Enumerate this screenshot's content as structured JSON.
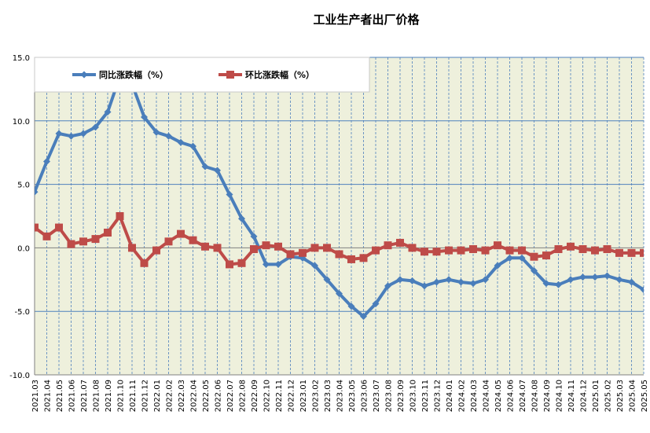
{
  "chart_data": {
    "type": "line",
    "title": "工业生产者出厂价格",
    "xlabel": "",
    "ylabel": "",
    "ylim": [
      -10,
      15
    ],
    "yticks": [
      "15.0",
      "10.0",
      "5.0",
      "0.0",
      "-5.0",
      "-10.0"
    ],
    "ytick_values": [
      15,
      10,
      5,
      0,
      -5,
      -10
    ],
    "grid": true,
    "legend_position": "top-left",
    "categories": [
      "2021.03",
      "2021.04",
      "2021.05",
      "2021.06",
      "2021.07",
      "2021.08",
      "2021.09",
      "2021.10",
      "2021.11",
      "2021.12",
      "2022.01",
      "2022.02",
      "2022.03",
      "2022.04",
      "2022.05",
      "2022.06",
      "2022.07",
      "2022.08",
      "2022.09",
      "2022.10",
      "2022.11",
      "2022.12",
      "2023.01",
      "2023.02",
      "2023.03",
      "2023.04",
      "2023.05",
      "2023.06",
      "2023.07",
      "2023.08",
      "2023.09",
      "2023.10",
      "2023.11",
      "2023.12",
      "2024.01",
      "2024.02",
      "2024.03",
      "2024.04",
      "2024.05",
      "2024.06",
      "2024.07",
      "2024.08",
      "2024.09",
      "2024.10",
      "2024.11",
      "2024.12",
      "2025.01",
      "2025.02",
      "2025.03",
      "2025.04",
      "2025.05"
    ],
    "series": [
      {
        "name": "同比涨跌幅（%）",
        "color": "#4a7ebb",
        "marker": "diamond",
        "values": [
          4.4,
          6.8,
          9.0,
          8.8,
          9.0,
          9.5,
          10.7,
          13.5,
          12.9,
          10.3,
          9.1,
          8.8,
          8.3,
          8.0,
          6.4,
          6.1,
          4.2,
          2.3,
          0.9,
          -1.3,
          -1.3,
          -0.7,
          -0.8,
          -1.4,
          -2.5,
          -3.6,
          -4.6,
          -5.4,
          -4.4,
          -3.0,
          -2.5,
          -2.6,
          -3.0,
          -2.7,
          -2.5,
          -2.7,
          -2.8,
          -2.5,
          -1.4,
          -0.8,
          -0.8,
          -1.8,
          -2.8,
          -2.9,
          -2.5,
          -2.3,
          -2.3,
          -2.2,
          -2.5,
          -2.7,
          -3.3
        ]
      },
      {
        "name": "环比涨跌幅（%）",
        "color": "#be4b48",
        "marker": "square",
        "values": [
          1.6,
          0.9,
          1.6,
          0.3,
          0.5,
          0.7,
          1.2,
          2.5,
          0.0,
          -1.2,
          -0.2,
          0.5,
          1.1,
          0.6,
          0.1,
          0.0,
          -1.3,
          -1.2,
          -0.1,
          0.2,
          0.1,
          -0.5,
          -0.4,
          0.0,
          0.0,
          -0.5,
          -0.9,
          -0.8,
          -0.2,
          0.2,
          0.4,
          0.0,
          -0.3,
          -0.3,
          -0.2,
          -0.2,
          -0.1,
          -0.2,
          0.2,
          -0.2,
          -0.2,
          -0.7,
          -0.6,
          -0.1,
          0.1,
          -0.1,
          -0.2,
          -0.1,
          -0.4,
          -0.4,
          -0.4
        ]
      }
    ]
  },
  "colors": {
    "plot_background": "#eef0dc",
    "grid_horizontal": "#4f81bd",
    "grid_vertical": "#4f81bd"
  }
}
